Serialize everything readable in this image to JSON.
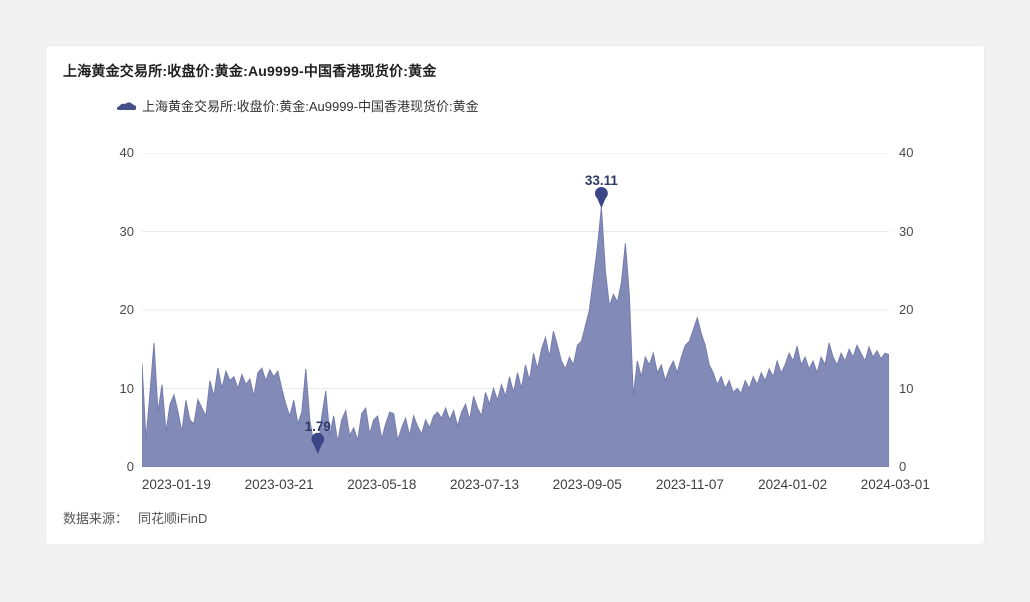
{
  "page": {
    "background": "#f1f1f2"
  },
  "card": {
    "title": "上海黄金交易所:收盘价:黄金:Au9999-中国香港现货价:黄金",
    "source_label": "数据来源：",
    "source_value": "同花顺iFinD"
  },
  "legend": {
    "label": "上海黄金交易所:收盘价:黄金:Au9999-中国香港现货价:黄金",
    "swatch_color": "#454f87"
  },
  "chart_data": {
    "type": "area",
    "title": "上海黄金交易所:收盘价:黄金:Au9999-中国香港现货价:黄金",
    "series_name": "上海黄金交易所:收盘价:黄金:Au9999-中国香港现货价:黄金",
    "ylim": [
      0,
      40
    ],
    "yticks": [
      0,
      10,
      20,
      30,
      40
    ],
    "grid": true,
    "legend_position": "top",
    "xticks": [
      "2023-01-19",
      "2023-03-21",
      "2023-05-18",
      "2023-07-13",
      "2023-09-05",
      "2023-11-07",
      "2024-01-02",
      "2024-03-01"
    ],
    "fill_color": "#828ab8",
    "stroke_color": "#767ead",
    "grid_color": "#e9e9e9",
    "annotation_pin_color": "#3b4687",
    "annotation_text_color": "#2e3a68",
    "annotations": [
      {
        "label": "33.11",
        "value": 33.11,
        "index": 115,
        "kind": "max"
      },
      {
        "label": "1.79",
        "value": 1.79,
        "index": 44,
        "kind": "min"
      }
    ],
    "values": [
      13.2,
      3.5,
      9.5,
      15.8,
      7.0,
      10.5,
      4.5,
      8.0,
      9.2,
      7.0,
      4.5,
      8.5,
      6.0,
      5.5,
      8.6,
      7.5,
      6.5,
      11.0,
      9.0,
      12.6,
      10.0,
      12.2,
      11.0,
      11.5,
      10.0,
      11.8,
      10.5,
      11.2,
      9.0,
      12.0,
      12.6,
      11.0,
      12.4,
      11.5,
      12.2,
      10.0,
      8.0,
      6.5,
      8.5,
      5.5,
      7.0,
      12.5,
      6.0,
      3.0,
      1.79,
      6.5,
      9.7,
      4.0,
      6.5,
      3.2,
      6.0,
      7.2,
      4.0,
      5.0,
      3.4,
      6.8,
      7.5,
      4.2,
      6.0,
      6.5,
      3.6,
      5.5,
      7.0,
      6.8,
      3.4,
      5.0,
      6.2,
      4.0,
      6.5,
      5.2,
      4.2,
      6.0,
      5.0,
      6.5,
      7.0,
      6.2,
      7.5,
      6.0,
      7.2,
      5.2,
      7.0,
      8.0,
      6.0,
      9.0,
      7.5,
      6.5,
      9.5,
      8.0,
      10.0,
      8.5,
      10.5,
      9.0,
      11.5,
      9.5,
      12.0,
      10.0,
      13.0,
      11.0,
      14.5,
      12.5,
      15.0,
      16.5,
      14.0,
      17.3,
      15.5,
      13.5,
      12.5,
      14.0,
      13.0,
      15.5,
      16.0,
      18.0,
      20.0,
      24.0,
      28.0,
      33.11,
      25.0,
      20.5,
      22.0,
      21.0,
      23.5,
      28.5,
      22.0,
      9.0,
      13.5,
      11.5,
      14.0,
      13.0,
      14.5,
      12.0,
      13.0,
      11.0,
      12.5,
      13.5,
      12.0,
      14.0,
      15.5,
      16.0,
      17.5,
      19.0,
      17.0,
      15.5,
      13.0,
      12.0,
      10.5,
      11.5,
      10.0,
      11.0,
      9.5,
      10.0,
      9.4,
      11.0,
      10.0,
      11.5,
      10.5,
      12.0,
      11.0,
      12.5,
      11.5,
      13.5,
      12.0,
      13.0,
      14.5,
      13.5,
      15.4,
      13.0,
      14.0,
      12.5,
      13.5,
      12.0,
      14.0,
      13.0,
      15.8,
      14.0,
      13.0,
      14.5,
      13.5,
      15.0,
      14.0,
      15.5,
      14.5,
      13.5,
      15.3,
      14.0,
      14.8,
      13.8,
      14.5,
      14.3
    ]
  }
}
